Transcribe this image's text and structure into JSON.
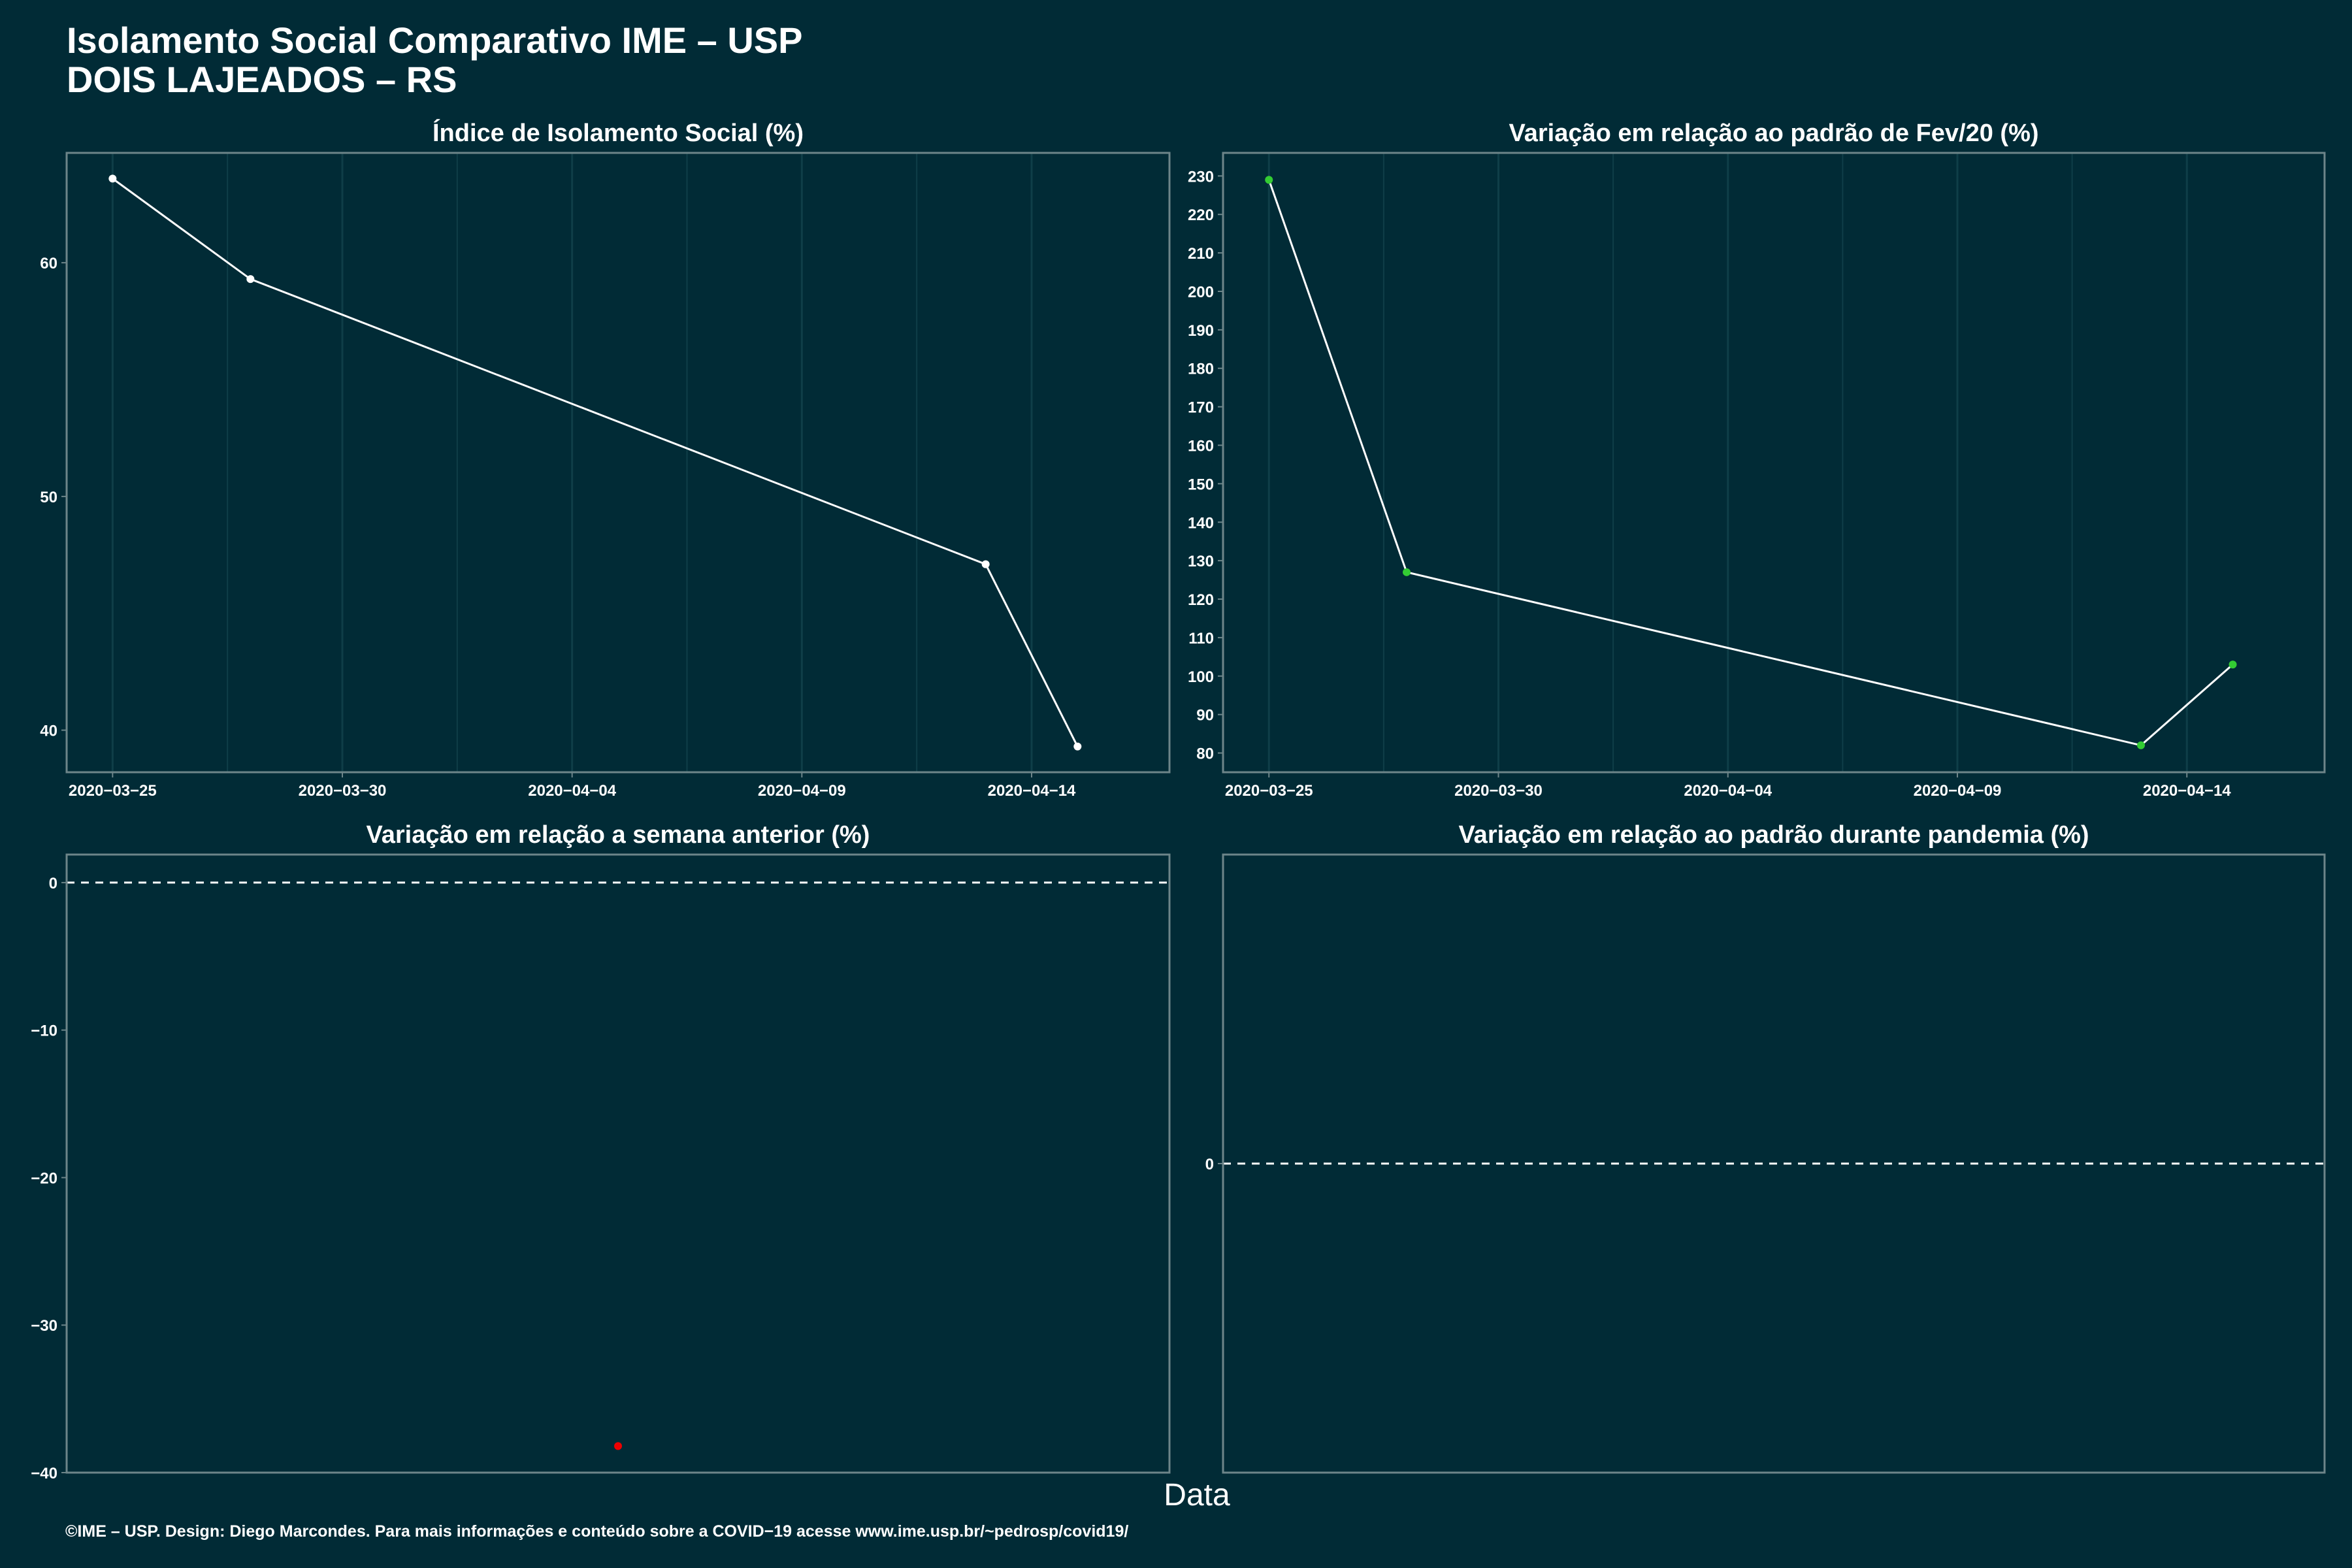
{
  "header": {
    "title": "Isolamento Social Comparativo IME – USP",
    "subtitle": "DOIS LAJEADOS – RS"
  },
  "xlabel": "Data",
  "footer": "©IME – USP. Design: Diego Marcondes. Para mais informações e conteúdo sobre a COVID−19 acesse www.ime.usp.br/~pedrosp/covid19/",
  "colors": {
    "background": "#012b36",
    "panel_border": "#6d8589",
    "grid": "#0f3e48",
    "line": "#ffffff",
    "point_white": "#ffffff",
    "point_green": "#33cc33",
    "point_red": "#ee0000"
  },
  "chart_data": [
    {
      "type": "line",
      "title": "Índice de Isolamento Social (%)",
      "x_type": "date",
      "xlim": [
        "2020-03-24",
        "2020-04-17"
      ],
      "ylim": [
        38.2,
        64.7
      ],
      "xticks": [
        "2020-03-25",
        "2020-03-30",
        "2020-04-04",
        "2020-04-09",
        "2020-04-14"
      ],
      "yticks": [
        40,
        50,
        60
      ],
      "series": [
        {
          "x": [
            "2020-03-25",
            "2020-03-28",
            "2020-04-13",
            "2020-04-15"
          ],
          "y": [
            63.6,
            59.3,
            47.1,
            39.3
          ],
          "point_color": "#ffffff"
        }
      ]
    },
    {
      "type": "line",
      "title": "Variação em relação ao padrão de Fev/20 (%)",
      "x_type": "date",
      "xlim": [
        "2020-03-24",
        "2020-04-17"
      ],
      "ylim": [
        75,
        236
      ],
      "xticks": [
        "2020-03-25",
        "2020-03-30",
        "2020-04-04",
        "2020-04-09",
        "2020-04-14"
      ],
      "yticks": [
        80,
        90,
        100,
        110,
        120,
        130,
        140,
        150,
        160,
        170,
        180,
        190,
        200,
        210,
        220,
        230
      ],
      "series": [
        {
          "x": [
            "2020-03-25",
            "2020-03-28",
            "2020-04-13",
            "2020-04-15"
          ],
          "y": [
            229,
            127,
            82,
            103
          ],
          "point_color": "#33cc33"
        }
      ]
    },
    {
      "type": "scatter",
      "title": "Variação em relação a semana anterior (%)",
      "ylim": [
        -40,
        1.9
      ],
      "yticks": [
        0,
        -10,
        -20,
        -30,
        -40
      ],
      "hline": 0,
      "points": [
        {
          "x": 0.5,
          "y": -38.2,
          "color": "#ee0000"
        }
      ]
    },
    {
      "type": "scatter",
      "title": "Variação em relação ao padrão durante pandemia (%)",
      "ylim": [
        -1,
        1
      ],
      "yticks": [
        0
      ],
      "hline": 0,
      "points": []
    }
  ]
}
